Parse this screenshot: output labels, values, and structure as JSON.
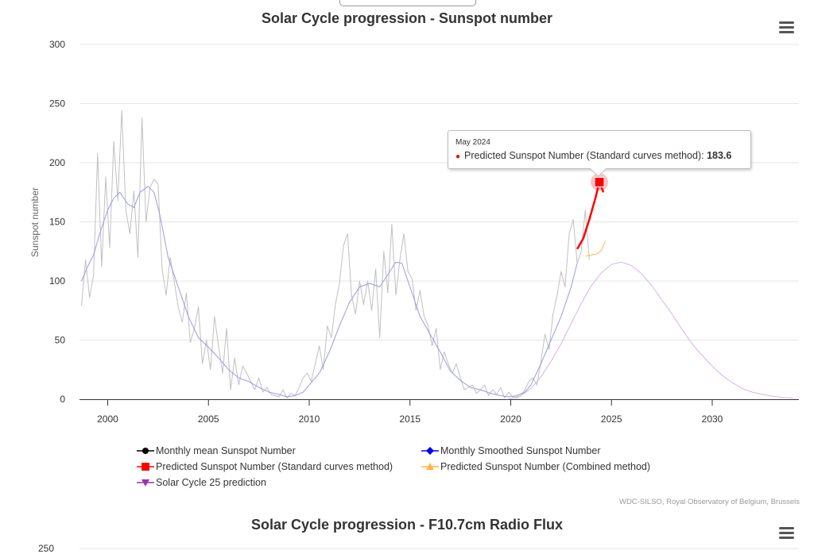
{
  "page": {
    "chart2_title": "Solar Cycle progression - F10.7cm Radio Flux",
    "chart2_first_tick": "250",
    "credits": "WDC-SILSO, Royal Observatory of Belgium, Brussels"
  },
  "tooltip": {
    "date": "May 2024",
    "series": "Predicted Sunspot Number (Standard curves method)",
    "value": "183.6"
  },
  "chart_data": {
    "type": "line",
    "title": "Solar Cycle progression - Sunspot number",
    "ylabel": "Sunspot number",
    "xlabel": "",
    "xlim": [
      1998.6,
      2034.3
    ],
    "ylim": [
      0,
      300
    ],
    "x_ticks": [
      2000,
      2005,
      2010,
      2015,
      2020,
      2025,
      2030
    ],
    "y_ticks": [
      0,
      50,
      100,
      150,
      200,
      250,
      300
    ],
    "grid": "horizontal",
    "legend_position": "bottom",
    "series": [
      {
        "name": "Monthly mean Sunspot Number",
        "color": "#c0c0c0",
        "marker": "circle",
        "x": [
          1998.7,
          1998.9,
          1999.1,
          1999.3,
          1999.5,
          1999.7,
          1999.9,
          2000.1,
          2000.3,
          2000.5,
          2000.7,
          2000.9,
          2001.1,
          2001.3,
          2001.5,
          2001.7,
          2001.9,
          2002.1,
          2002.3,
          2002.5,
          2002.7,
          2002.9,
          2003.1,
          2003.3,
          2003.5,
          2003.7,
          2003.9,
          2004.1,
          2004.3,
          2004.5,
          2004.7,
          2004.9,
          2005.1,
          2005.3,
          2005.5,
          2005.7,
          2005.9,
          2006.1,
          2006.3,
          2006.5,
          2006.7,
          2006.9,
          2007.1,
          2007.3,
          2007.5,
          2007.7,
          2007.9,
          2008.1,
          2008.3,
          2008.5,
          2008.7,
          2008.9,
          2009.1,
          2009.3,
          2009.5,
          2009.7,
          2009.9,
          2010.1,
          2010.3,
          2010.5,
          2010.7,
          2010.9,
          2011.1,
          2011.3,
          2011.5,
          2011.7,
          2011.9,
          2012.1,
          2012.3,
          2012.5,
          2012.7,
          2012.9,
          2013.1,
          2013.3,
          2013.5,
          2013.7,
          2013.9,
          2014.1,
          2014.3,
          2014.5,
          2014.7,
          2014.9,
          2015.1,
          2015.3,
          2015.5,
          2015.7,
          2015.9,
          2016.1,
          2016.3,
          2016.5,
          2016.7,
          2016.9,
          2017.1,
          2017.3,
          2017.5,
          2017.7,
          2017.9,
          2018.1,
          2018.3,
          2018.5,
          2018.7,
          2018.9,
          2019.1,
          2019.3,
          2019.5,
          2019.7,
          2019.9,
          2020.1,
          2020.3,
          2020.5,
          2020.7,
          2020.9,
          2021.1,
          2021.3,
          2021.5,
          2021.7,
          2021.9,
          2022.1,
          2022.3,
          2022.5,
          2022.7,
          2022.9,
          2023.1,
          2023.3,
          2023.5,
          2023.7,
          2023.9
        ],
        "values": [
          79,
          118,
          86,
          105,
          208,
          112,
          188,
          128,
          218,
          168,
          244,
          160,
          140,
          176,
          120,
          238,
          150,
          179,
          186,
          182,
          110,
          88,
          120,
          100,
          78,
          65,
          90,
          48,
          60,
          78,
          30,
          50,
          25,
          70,
          45,
          22,
          60,
          8,
          35,
          12,
          28,
          22,
          15,
          8,
          18,
          6,
          10,
          4,
          3,
          2,
          8,
          1,
          5,
          3,
          10,
          18,
          22,
          15,
          30,
          45,
          25,
          62,
          52,
          80,
          98,
          130,
          140,
          88,
          72,
          100,
          80,
          100,
          75,
          110,
          52,
          125,
          90,
          148,
          88,
          118,
          140,
          108,
          102,
          75,
          92,
          70,
          62,
          45,
          60,
          25,
          40,
          30,
          22,
          30,
          18,
          8,
          10,
          12,
          5,
          8,
          12,
          3,
          8,
          4,
          10,
          1,
          6,
          2,
          1,
          3,
          8,
          15,
          18,
          12,
          32,
          55,
          42,
          72,
          88,
          108,
          95,
          140,
          152,
          115,
          125,
          160,
          118
        ]
      },
      {
        "name": "Monthly Smoothed Sunspot Number",
        "color": "#9a9ae6",
        "marker": "diamond",
        "x": [
          1998.7,
          1999.0,
          1999.3,
          1999.6,
          2000.0,
          2000.3,
          2000.6,
          2001.0,
          2001.3,
          2001.6,
          2002.0,
          2002.3,
          2002.6,
          2003.0,
          2003.5,
          2004.0,
          2004.5,
          2005.0,
          2005.5,
          2006.0,
          2006.5,
          2007.0,
          2007.5,
          2008.0,
          2008.5,
          2008.9,
          2009.3,
          2009.7,
          2010.0,
          2010.5,
          2011.0,
          2011.5,
          2012.0,
          2012.5,
          2013.0,
          2013.5,
          2014.0,
          2014.3,
          2014.6,
          2015.0,
          2015.5,
          2016.0,
          2016.5,
          2017.0,
          2017.5,
          2018.0,
          2018.5,
          2019.0,
          2019.5,
          2019.9,
          2020.3,
          2020.7,
          2021.0,
          2021.5,
          2022.0,
          2022.5,
          2023.0,
          2023.3
        ],
        "values": [
          100,
          112,
          122,
          140,
          160,
          170,
          175,
          165,
          162,
          175,
          180,
          175,
          155,
          120,
          95,
          70,
          52,
          44,
          35,
          25,
          18,
          15,
          10,
          6,
          4,
          2,
          3,
          6,
          12,
          22,
          40,
          62,
          82,
          95,
          98,
          95,
          108,
          116,
          115,
          95,
          70,
          55,
          40,
          24,
          16,
          10,
          8,
          5,
          3,
          2,
          3,
          6,
          12,
          30,
          50,
          70,
          95,
          115
        ]
      },
      {
        "name": "Predicted Sunspot Number (Standard curves method)",
        "color": "#ff0000",
        "marker": "square",
        "x": [
          2023.3,
          2023.6,
          2023.9,
          2024.2,
          2024.4,
          2024.6
        ],
        "values": [
          127,
          136,
          152,
          170,
          183.6,
          175
        ]
      },
      {
        "name": "Predicted Sunspot Number (Combined method)",
        "color": "#ffb347",
        "marker": "triangle",
        "x": [
          2023.7,
          2024.0,
          2024.3,
          2024.5,
          2024.7
        ],
        "values": [
          121,
          122,
          123,
          126,
          134
        ]
      },
      {
        "name": "Solar Cycle 25 prediction",
        "color": "#d9b3e6",
        "marker": "triangle-down",
        "x": [
          2019.8,
          2020.0,
          2020.5,
          2021.0,
          2021.5,
          2022.0,
          2022.5,
          2023.0,
          2023.5,
          2024.0,
          2024.5,
          2025.0,
          2025.5,
          2026.0,
          2026.5,
          2027.0,
          2027.5,
          2028.0,
          2028.5,
          2029.0,
          2029.5,
          2030.0,
          2030.5,
          2031.0,
          2031.5,
          2032.0,
          2032.5,
          2033.0,
          2033.5,
          2034.0
        ],
        "values": [
          0,
          0.5,
          3,
          9,
          19,
          32,
          47,
          64,
          81,
          96,
          107,
          114,
          116,
          113,
          106,
          96,
          84,
          72,
          59,
          47,
          37,
          28,
          20,
          14,
          9,
          6,
          4,
          2.5,
          1.5,
          1
        ]
      }
    ]
  }
}
